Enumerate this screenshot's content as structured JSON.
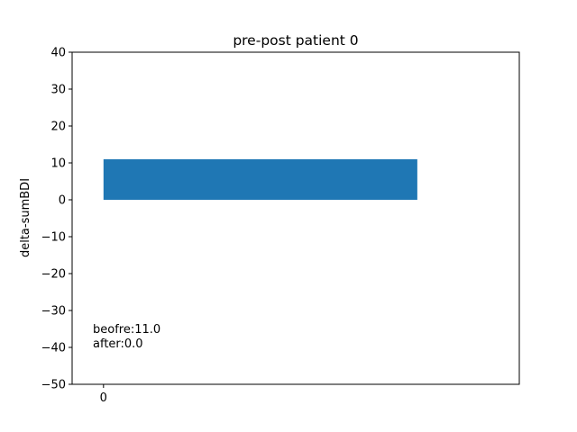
{
  "chart_data": {
    "type": "bar",
    "title": "pre-post patient 0",
    "xlabel": "",
    "ylabel": "delta-sumBDI",
    "categories": [
      0
    ],
    "x_tick_labels": [
      "0"
    ],
    "values": [
      11
    ],
    "ylim": [
      -50,
      40
    ],
    "yticks": [
      40,
      30,
      20,
      10,
      0,
      -10,
      -20,
      -30,
      -40,
      -50
    ],
    "ytick_labels": [
      "40",
      "30",
      "20",
      "10",
      "0",
      "−10",
      "−20",
      "−30",
      "−40",
      "−50"
    ],
    "bar_color": "#1f77b4",
    "grid": false,
    "annotations": [
      "beofre:11.0",
      "after:0.0"
    ]
  }
}
